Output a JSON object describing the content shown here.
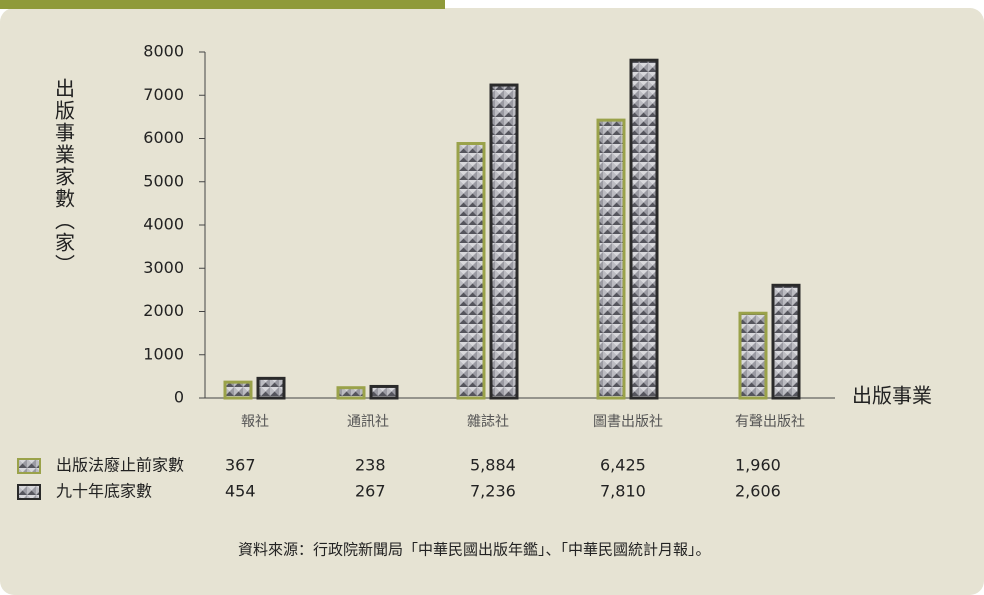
{
  "chart_data": {
    "type": "bar",
    "y_label": "出版事業家數（家）",
    "x_label": "出版事業",
    "categories": [
      "報社",
      "通訊社",
      "雜誌社",
      "圖書出版社",
      "有聲出版社"
    ],
    "series": [
      {
        "name": "出版法廢止前家數",
        "color": "#9aa24a",
        "values": [
          367,
          238,
          5884,
          6425,
          1960
        ],
        "value_labels": [
          "367",
          "238",
          "5,884",
          "6,425",
          "1,960"
        ]
      },
      {
        "name": "九十年底家數",
        "color": "#2a2a2a",
        "values": [
          454,
          267,
          7236,
          7810,
          2606
        ],
        "value_labels": [
          "454",
          "267",
          "7,236",
          "7,810",
          "2,606"
        ]
      }
    ],
    "ylim": [
      0,
      8000
    ],
    "yticks": [
      0,
      1000,
      2000,
      3000,
      4000,
      5000,
      6000,
      7000,
      8000
    ],
    "source": "資料來源：行政院新聞局「中華民國出版年鑑」、「中華民國統計月報」。"
  }
}
